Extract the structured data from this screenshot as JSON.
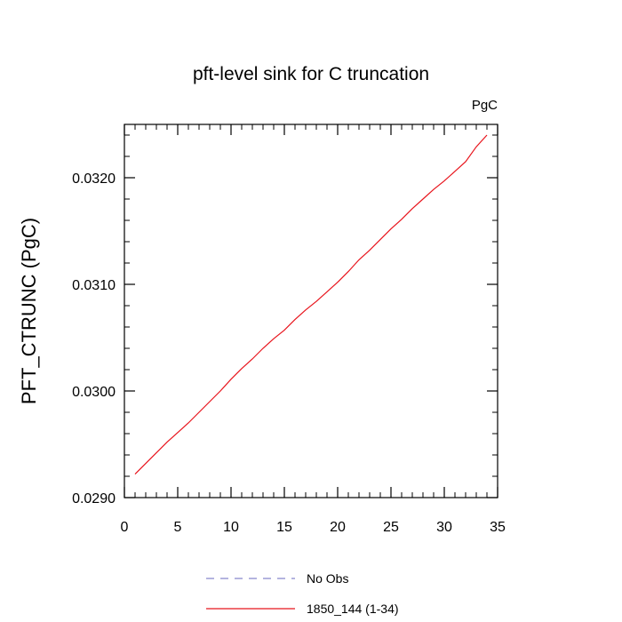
{
  "chart_data": {
    "type": "line",
    "title": "pft-level sink for C truncation",
    "units_label": "PgC",
    "xlabel": "",
    "ylabel": "PFT_CTRUNC  (PgC)",
    "xlim": [
      0,
      35
    ],
    "ylim": [
      0.029,
      0.0325
    ],
    "x_ticks": [
      0,
      5,
      10,
      15,
      20,
      25,
      30,
      35
    ],
    "x_tick_labels": [
      "0",
      "5",
      "10",
      "15",
      "20",
      "25",
      "30",
      "35"
    ],
    "y_ticks": [
      0.029,
      0.03,
      0.031,
      0.032
    ],
    "y_tick_labels": [
      "0.0290",
      "0.0300",
      "0.0310",
      "0.0320"
    ],
    "grid": false,
    "legend_position": "bottom",
    "series": [
      {
        "name": "No Obs",
        "color": "#8888cc",
        "dash": true,
        "x": [],
        "y": []
      },
      {
        "name": "1850_144 (1-34)",
        "color": "#e8141c",
        "dash": false,
        "x": [
          1,
          2,
          3,
          4,
          5,
          6,
          7,
          8,
          9,
          10,
          11,
          12,
          13,
          14,
          15,
          16,
          17,
          18,
          19,
          20,
          21,
          22,
          23,
          24,
          25,
          26,
          27,
          28,
          29,
          30,
          31,
          32,
          33,
          34
        ],
        "y": [
          0.02922,
          0.02932,
          0.02942,
          0.02952,
          0.02961,
          0.0297,
          0.0298,
          0.0299,
          0.03,
          0.03011,
          0.03021,
          0.0303,
          0.0304,
          0.03049,
          0.03057,
          0.03067,
          0.03076,
          0.03084,
          0.03093,
          0.03102,
          0.03112,
          0.03123,
          0.03132,
          0.03142,
          0.03152,
          0.03161,
          0.03171,
          0.0318,
          0.03189,
          0.03197,
          0.03206,
          0.03215,
          0.03229,
          0.0324
        ]
      }
    ]
  }
}
